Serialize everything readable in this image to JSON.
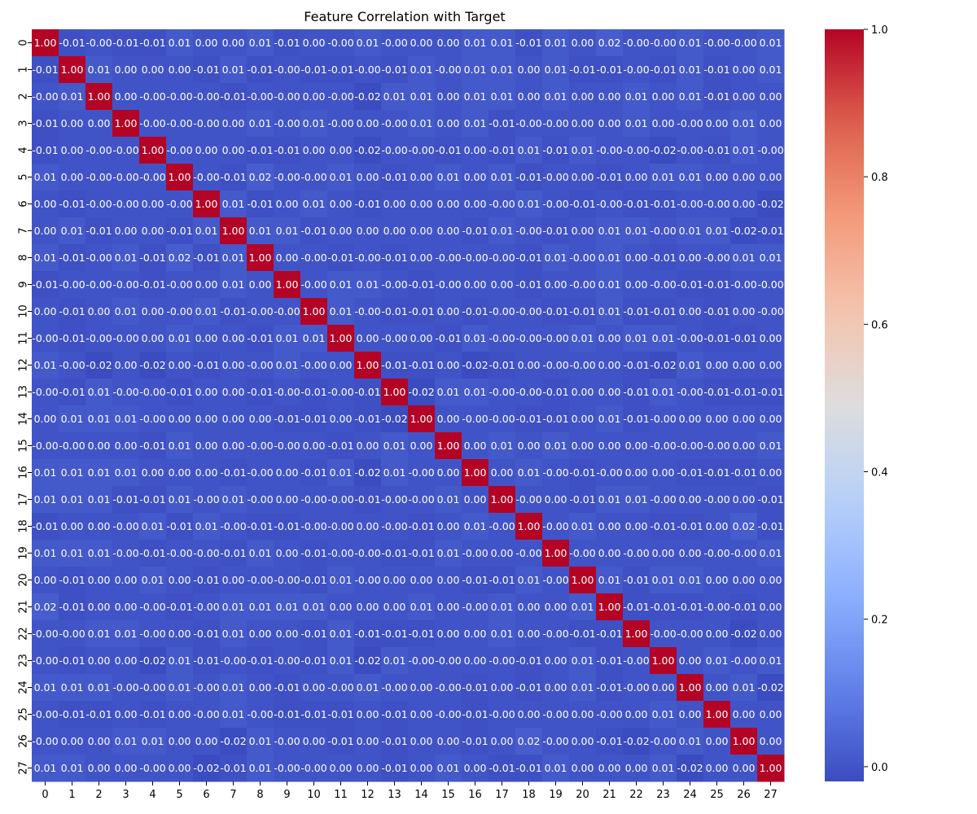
{
  "chart_data": {
    "type": "heatmap",
    "title": "Feature Correlation with Target",
    "xlabel": "",
    "ylabel": "",
    "labels": [
      "0",
      "1",
      "2",
      "3",
      "4",
      "5",
      "6",
      "7",
      "8",
      "9",
      "10",
      "11",
      "12",
      "13",
      "14",
      "15",
      "16",
      "17",
      "18",
      "19",
      "20",
      "21",
      "22",
      "23",
      "24",
      "25",
      "26",
      "27"
    ],
    "colormap": "coolwarm",
    "vmin": -0.02,
    "vmax": 1.0,
    "colorbar_ticks": [
      "0.0",
      "0.2",
      "0.4",
      "0.6",
      "0.8",
      "1.0"
    ],
    "colorbar_tick_values": [
      0.0,
      0.2,
      0.4,
      0.6,
      0.8,
      1.0
    ],
    "cell_format": "%.2f",
    "matrix": [
      [
        1.0,
        -0.01,
        -0.0,
        -0.01,
        -0.01,
        0.01,
        0.0,
        0.0,
        0.01,
        -0.01,
        0.0,
        -0.0,
        0.01,
        -0.0,
        0.0,
        0.0,
        0.01,
        0.01,
        -0.01,
        0.01,
        0.0,
        0.02,
        -0.0,
        -0.0,
        0.01,
        -0.0,
        -0.0,
        0.01
      ],
      [
        -0.01,
        1.0,
        0.01,
        0.0,
        0.0,
        0.0,
        -0.01,
        0.01,
        -0.01,
        -0.0,
        -0.01,
        -0.01,
        -0.0,
        -0.01,
        0.01,
        -0.0,
        0.01,
        0.01,
        0.0,
        0.01,
        -0.01,
        -0.01,
        -0.0,
        -0.01,
        0.01,
        -0.01,
        0.0,
        0.01
      ],
      [
        -0.0,
        0.01,
        1.0,
        0.0,
        -0.0,
        -0.0,
        -0.0,
        -0.01,
        -0.0,
        -0.0,
        0.0,
        -0.0,
        -0.02,
        0.01,
        0.01,
        0.0,
        0.01,
        0.01,
        0.0,
        0.01,
        0.0,
        0.0,
        0.01,
        0.0,
        0.01,
        -0.01,
        0.0,
        0.0
      ],
      [
        -0.01,
        0.0,
        0.0,
        1.0,
        -0.0,
        -0.0,
        -0.0,
        0.0,
        0.01,
        -0.0,
        0.01,
        -0.0,
        0.0,
        -0.0,
        0.01,
        0.0,
        0.01,
        -0.01,
        -0.0,
        -0.0,
        0.0,
        0.0,
        0.01,
        0.0,
        -0.0,
        0.0,
        0.01,
        0.0
      ],
      [
        -0.01,
        0.0,
        -0.0,
        -0.0,
        1.0,
        -0.0,
        0.0,
        0.0,
        -0.01,
        -0.01,
        0.0,
        0.0,
        -0.02,
        -0.0,
        -0.0,
        -0.01,
        0.0,
        -0.01,
        0.01,
        -0.01,
        0.01,
        -0.0,
        -0.0,
        -0.02,
        -0.0,
        -0.01,
        0.01,
        -0.0
      ],
      [
        0.01,
        0.0,
        -0.0,
        -0.0,
        -0.0,
        1.0,
        -0.0,
        -0.01,
        0.02,
        -0.0,
        -0.0,
        0.01,
        0.0,
        -0.01,
        0.0,
        0.01,
        0.0,
        0.01,
        -0.01,
        -0.0,
        0.0,
        -0.01,
        0.0,
        0.01,
        0.01,
        0.0,
        0.0,
        0.0
      ],
      [
        0.0,
        -0.01,
        -0.0,
        -0.0,
        0.0,
        -0.0,
        1.0,
        0.01,
        -0.01,
        0.0,
        0.01,
        0.0,
        -0.01,
        0.0,
        0.0,
        0.0,
        0.0,
        -0.0,
        0.01,
        -0.0,
        -0.01,
        -0.0,
        -0.01,
        -0.01,
        -0.0,
        -0.0,
        0.0,
        -0.02
      ],
      [
        0.0,
        0.01,
        -0.01,
        0.0,
        0.0,
        -0.01,
        0.01,
        1.0,
        0.01,
        0.01,
        -0.01,
        0.0,
        0.0,
        0.0,
        0.0,
        0.0,
        -0.01,
        0.01,
        -0.0,
        -0.01,
        0.0,
        0.01,
        0.01,
        -0.0,
        0.01,
        0.01,
        -0.02,
        -0.01
      ],
      [
        0.01,
        -0.01,
        -0.0,
        0.01,
        -0.01,
        0.02,
        -0.01,
        0.01,
        1.0,
        0.0,
        -0.0,
        -0.01,
        -0.0,
        -0.01,
        0.0,
        -0.0,
        -0.0,
        -0.0,
        -0.01,
        0.01,
        -0.0,
        0.01,
        0.0,
        -0.01,
        0.0,
        -0.0,
        0.01,
        0.01
      ],
      [
        -0.01,
        -0.0,
        -0.0,
        -0.0,
        -0.01,
        -0.0,
        0.0,
        0.01,
        0.0,
        1.0,
        -0.0,
        0.01,
        0.01,
        -0.0,
        -0.01,
        -0.0,
        0.0,
        0.0,
        -0.01,
        0.0,
        -0.0,
        0.01,
        0.0,
        -0.0,
        -0.01,
        -0.01,
        -0.0,
        -0.0
      ],
      [
        0.0,
        -0.01,
        0.0,
        0.01,
        0.0,
        -0.0,
        0.01,
        -0.01,
        -0.0,
        -0.0,
        1.0,
        0.01,
        -0.0,
        -0.01,
        -0.01,
        0.0,
        -0.01,
        -0.0,
        -0.0,
        -0.01,
        -0.01,
        0.01,
        -0.01,
        -0.01,
        0.0,
        -0.01,
        0.0,
        -0.0
      ],
      [
        -0.0,
        -0.01,
        -0.0,
        -0.0,
        0.0,
        0.01,
        0.0,
        0.0,
        -0.01,
        0.01,
        0.01,
        1.0,
        0.0,
        -0.0,
        0.0,
        -0.01,
        0.01,
        -0.0,
        -0.0,
        -0.0,
        0.01,
        0.0,
        0.01,
        0.01,
        -0.0,
        -0.01,
        -0.01,
        0.0
      ],
      [
        0.01,
        -0.0,
        -0.02,
        0.0,
        -0.02,
        0.0,
        -0.01,
        0.0,
        -0.0,
        0.01,
        -0.0,
        0.0,
        1.0,
        -0.01,
        -0.01,
        0.0,
        -0.02,
        -0.01,
        0.0,
        -0.0,
        -0.0,
        0.0,
        -0.01,
        -0.02,
        0.01,
        0.0,
        0.0,
        0.0
      ],
      [
        -0.0,
        -0.01,
        0.01,
        -0.0,
        -0.0,
        -0.01,
        0.0,
        0.0,
        -0.01,
        -0.0,
        -0.01,
        -0.0,
        -0.01,
        1.0,
        -0.02,
        0.01,
        0.01,
        -0.0,
        -0.0,
        -0.01,
        0.0,
        0.0,
        -0.01,
        0.01,
        -0.0,
        -0.01,
        -0.01,
        -0.01
      ],
      [
        0.0,
        0.01,
        0.01,
        0.01,
        -0.0,
        0.0,
        0.0,
        0.0,
        0.0,
        -0.01,
        -0.01,
        0.0,
        -0.01,
        -0.02,
        1.0,
        0.0,
        -0.0,
        -0.0,
        -0.01,
        -0.01,
        0.0,
        0.01,
        -0.01,
        -0.0,
        0.0,
        0.0,
        0.0,
        0.0
      ],
      [
        -0.0,
        -0.0,
        0.0,
        0.0,
        -0.01,
        0.01,
        0.0,
        0.0,
        -0.0,
        -0.0,
        0.0,
        -0.01,
        0.0,
        0.01,
        0.0,
        1.0,
        0.0,
        0.01,
        0.0,
        0.01,
        0.0,
        0.0,
        0.0,
        -0.0,
        -0.0,
        -0.0,
        0.0,
        0.01
      ],
      [
        0.01,
        0.01,
        0.01,
        0.01,
        0.0,
        0.0,
        0.0,
        -0.01,
        -0.0,
        0.0,
        -0.01,
        0.01,
        -0.02,
        0.01,
        -0.0,
        0.0,
        1.0,
        0.0,
        0.01,
        -0.0,
        -0.01,
        -0.0,
        0.0,
        0.0,
        -0.01,
        -0.01,
        -0.01,
        0.0
      ],
      [
        0.01,
        0.01,
        0.01,
        -0.01,
        -0.01,
        0.01,
        -0.0,
        0.01,
        -0.0,
        0.0,
        -0.0,
        -0.0,
        -0.01,
        -0.0,
        -0.0,
        0.01,
        0.0,
        1.0,
        -0.0,
        0.0,
        -0.01,
        0.01,
        0.01,
        -0.0,
        0.0,
        -0.0,
        0.0,
        -0.01
      ],
      [
        -0.01,
        0.0,
        0.0,
        -0.0,
        0.01,
        -0.01,
        0.01,
        -0.0,
        -0.01,
        -0.01,
        -0.0,
        -0.0,
        0.0,
        -0.0,
        -0.01,
        0.0,
        0.01,
        -0.0,
        1.0,
        -0.0,
        0.01,
        0.0,
        0.0,
        -0.01,
        -0.01,
        0.0,
        0.02,
        -0.01
      ],
      [
        0.01,
        0.01,
        0.01,
        -0.0,
        -0.01,
        -0.0,
        -0.0,
        -0.01,
        0.01,
        0.0,
        -0.01,
        -0.0,
        -0.0,
        -0.01,
        -0.01,
        0.01,
        -0.0,
        0.0,
        -0.0,
        1.0,
        -0.0,
        0.0,
        -0.0,
        0.0,
        0.0,
        -0.0,
        -0.0,
        0.01
      ],
      [
        0.0,
        -0.01,
        0.0,
        0.0,
        0.01,
        0.0,
        -0.01,
        0.0,
        -0.0,
        -0.0,
        -0.01,
        0.01,
        -0.0,
        0.0,
        0.0,
        0.0,
        -0.01,
        -0.01,
        0.01,
        -0.0,
        1.0,
        0.01,
        -0.01,
        0.01,
        0.01,
        0.0,
        0.0,
        0.0
      ],
      [
        0.02,
        -0.01,
        0.0,
        0.0,
        -0.0,
        -0.01,
        -0.0,
        0.01,
        0.01,
        0.01,
        0.01,
        0.0,
        0.0,
        0.0,
        0.01,
        0.0,
        -0.0,
        0.01,
        0.0,
        0.0,
        0.01,
        1.0,
        -0.01,
        -0.01,
        -0.01,
        -0.0,
        -0.01,
        0.0
      ],
      [
        -0.0,
        -0.0,
        0.01,
        0.01,
        -0.0,
        0.0,
        -0.01,
        0.01,
        0.0,
        0.0,
        -0.01,
        0.01,
        -0.01,
        -0.01,
        -0.01,
        0.0,
        0.0,
        0.01,
        0.0,
        -0.0,
        -0.01,
        -0.01,
        1.0,
        -0.0,
        -0.0,
        0.0,
        -0.02,
        0.0
      ],
      [
        -0.0,
        -0.01,
        0.0,
        0.0,
        -0.02,
        0.01,
        -0.01,
        -0.0,
        -0.01,
        -0.0,
        -0.01,
        0.01,
        -0.02,
        0.01,
        -0.0,
        -0.0,
        0.0,
        -0.0,
        -0.01,
        0.0,
        0.01,
        -0.01,
        -0.0,
        1.0,
        0.0,
        0.01,
        -0.0,
        0.01
      ],
      [
        0.01,
        0.01,
        0.01,
        -0.0,
        -0.0,
        0.01,
        -0.0,
        0.01,
        0.0,
        -0.01,
        0.0,
        -0.0,
        0.01,
        -0.0,
        0.0,
        -0.0,
        -0.01,
        0.0,
        -0.01,
        0.0,
        0.01,
        -0.01,
        -0.0,
        0.0,
        1.0,
        0.0,
        0.01,
        -0.02
      ],
      [
        -0.0,
        -0.01,
        -0.01,
        0.0,
        -0.01,
        0.0,
        -0.0,
        0.01,
        -0.0,
        -0.01,
        -0.01,
        -0.01,
        0.0,
        -0.01,
        0.0,
        -0.0,
        -0.01,
        -0.0,
        0.0,
        -0.0,
        0.0,
        -0.0,
        0.0,
        0.01,
        0.0,
        1.0,
        0.0,
        0.0
      ],
      [
        -0.0,
        0.0,
        0.0,
        0.01,
        0.01,
        0.0,
        0.0,
        -0.02,
        0.01,
        -0.0,
        0.0,
        -0.01,
        0.0,
        -0.01,
        0.0,
        0.0,
        -0.01,
        0.0,
        0.02,
        -0.0,
        0.0,
        -0.01,
        -0.02,
        -0.0,
        0.01,
        0.0,
        1.0,
        0.0
      ],
      [
        0.01,
        0.01,
        0.0,
        0.0,
        -0.0,
        0.0,
        -0.02,
        -0.01,
        0.01,
        -0.0,
        -0.0,
        0.0,
        0.0,
        -0.01,
        0.0,
        0.01,
        0.0,
        -0.01,
        -0.01,
        0.01,
        0.0,
        0.0,
        0.0,
        0.01,
        -0.02,
        0.0,
        0.0,
        1.0
      ]
    ]
  }
}
